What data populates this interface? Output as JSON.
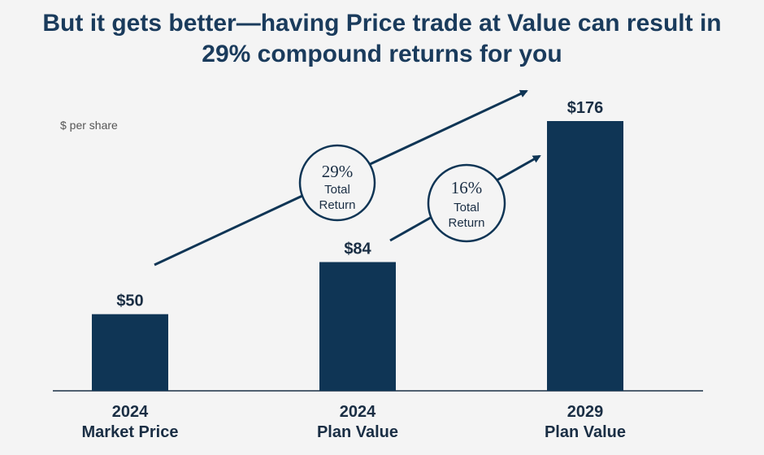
{
  "title_lines": [
    "But it gets better—having Price trade at Value can result in",
    "29% compound returns for you"
  ],
  "unit_label": "$ per share",
  "colors": {
    "bar": "#0f3555",
    "text": "#1a2e44",
    "title": "#1a3b5c",
    "axis": "#1a2e44",
    "arrow": "#0f3555"
  },
  "chart_data": {
    "type": "bar",
    "title": "But it gets better—having Price trade at Value can result in 29% compound returns for you",
    "ylabel": "$ per share",
    "categories": [
      [
        "2024",
        "Market Price"
      ],
      [
        "2024",
        "Plan Value"
      ],
      [
        "2029",
        "Plan Value"
      ]
    ],
    "values": [
      50,
      84,
      176
    ],
    "value_labels": [
      "$50",
      "$84",
      "$176"
    ],
    "ylim": [
      0,
      200
    ],
    "grid": false,
    "annotations": [
      {
        "from_category": 0,
        "to_category": 2,
        "rate": "29%",
        "label_lines": [
          "Total",
          "Return"
        ]
      },
      {
        "from_category": 1,
        "to_category": 2,
        "rate": "16%",
        "label_lines": [
          "Total",
          "Return"
        ]
      }
    ]
  }
}
